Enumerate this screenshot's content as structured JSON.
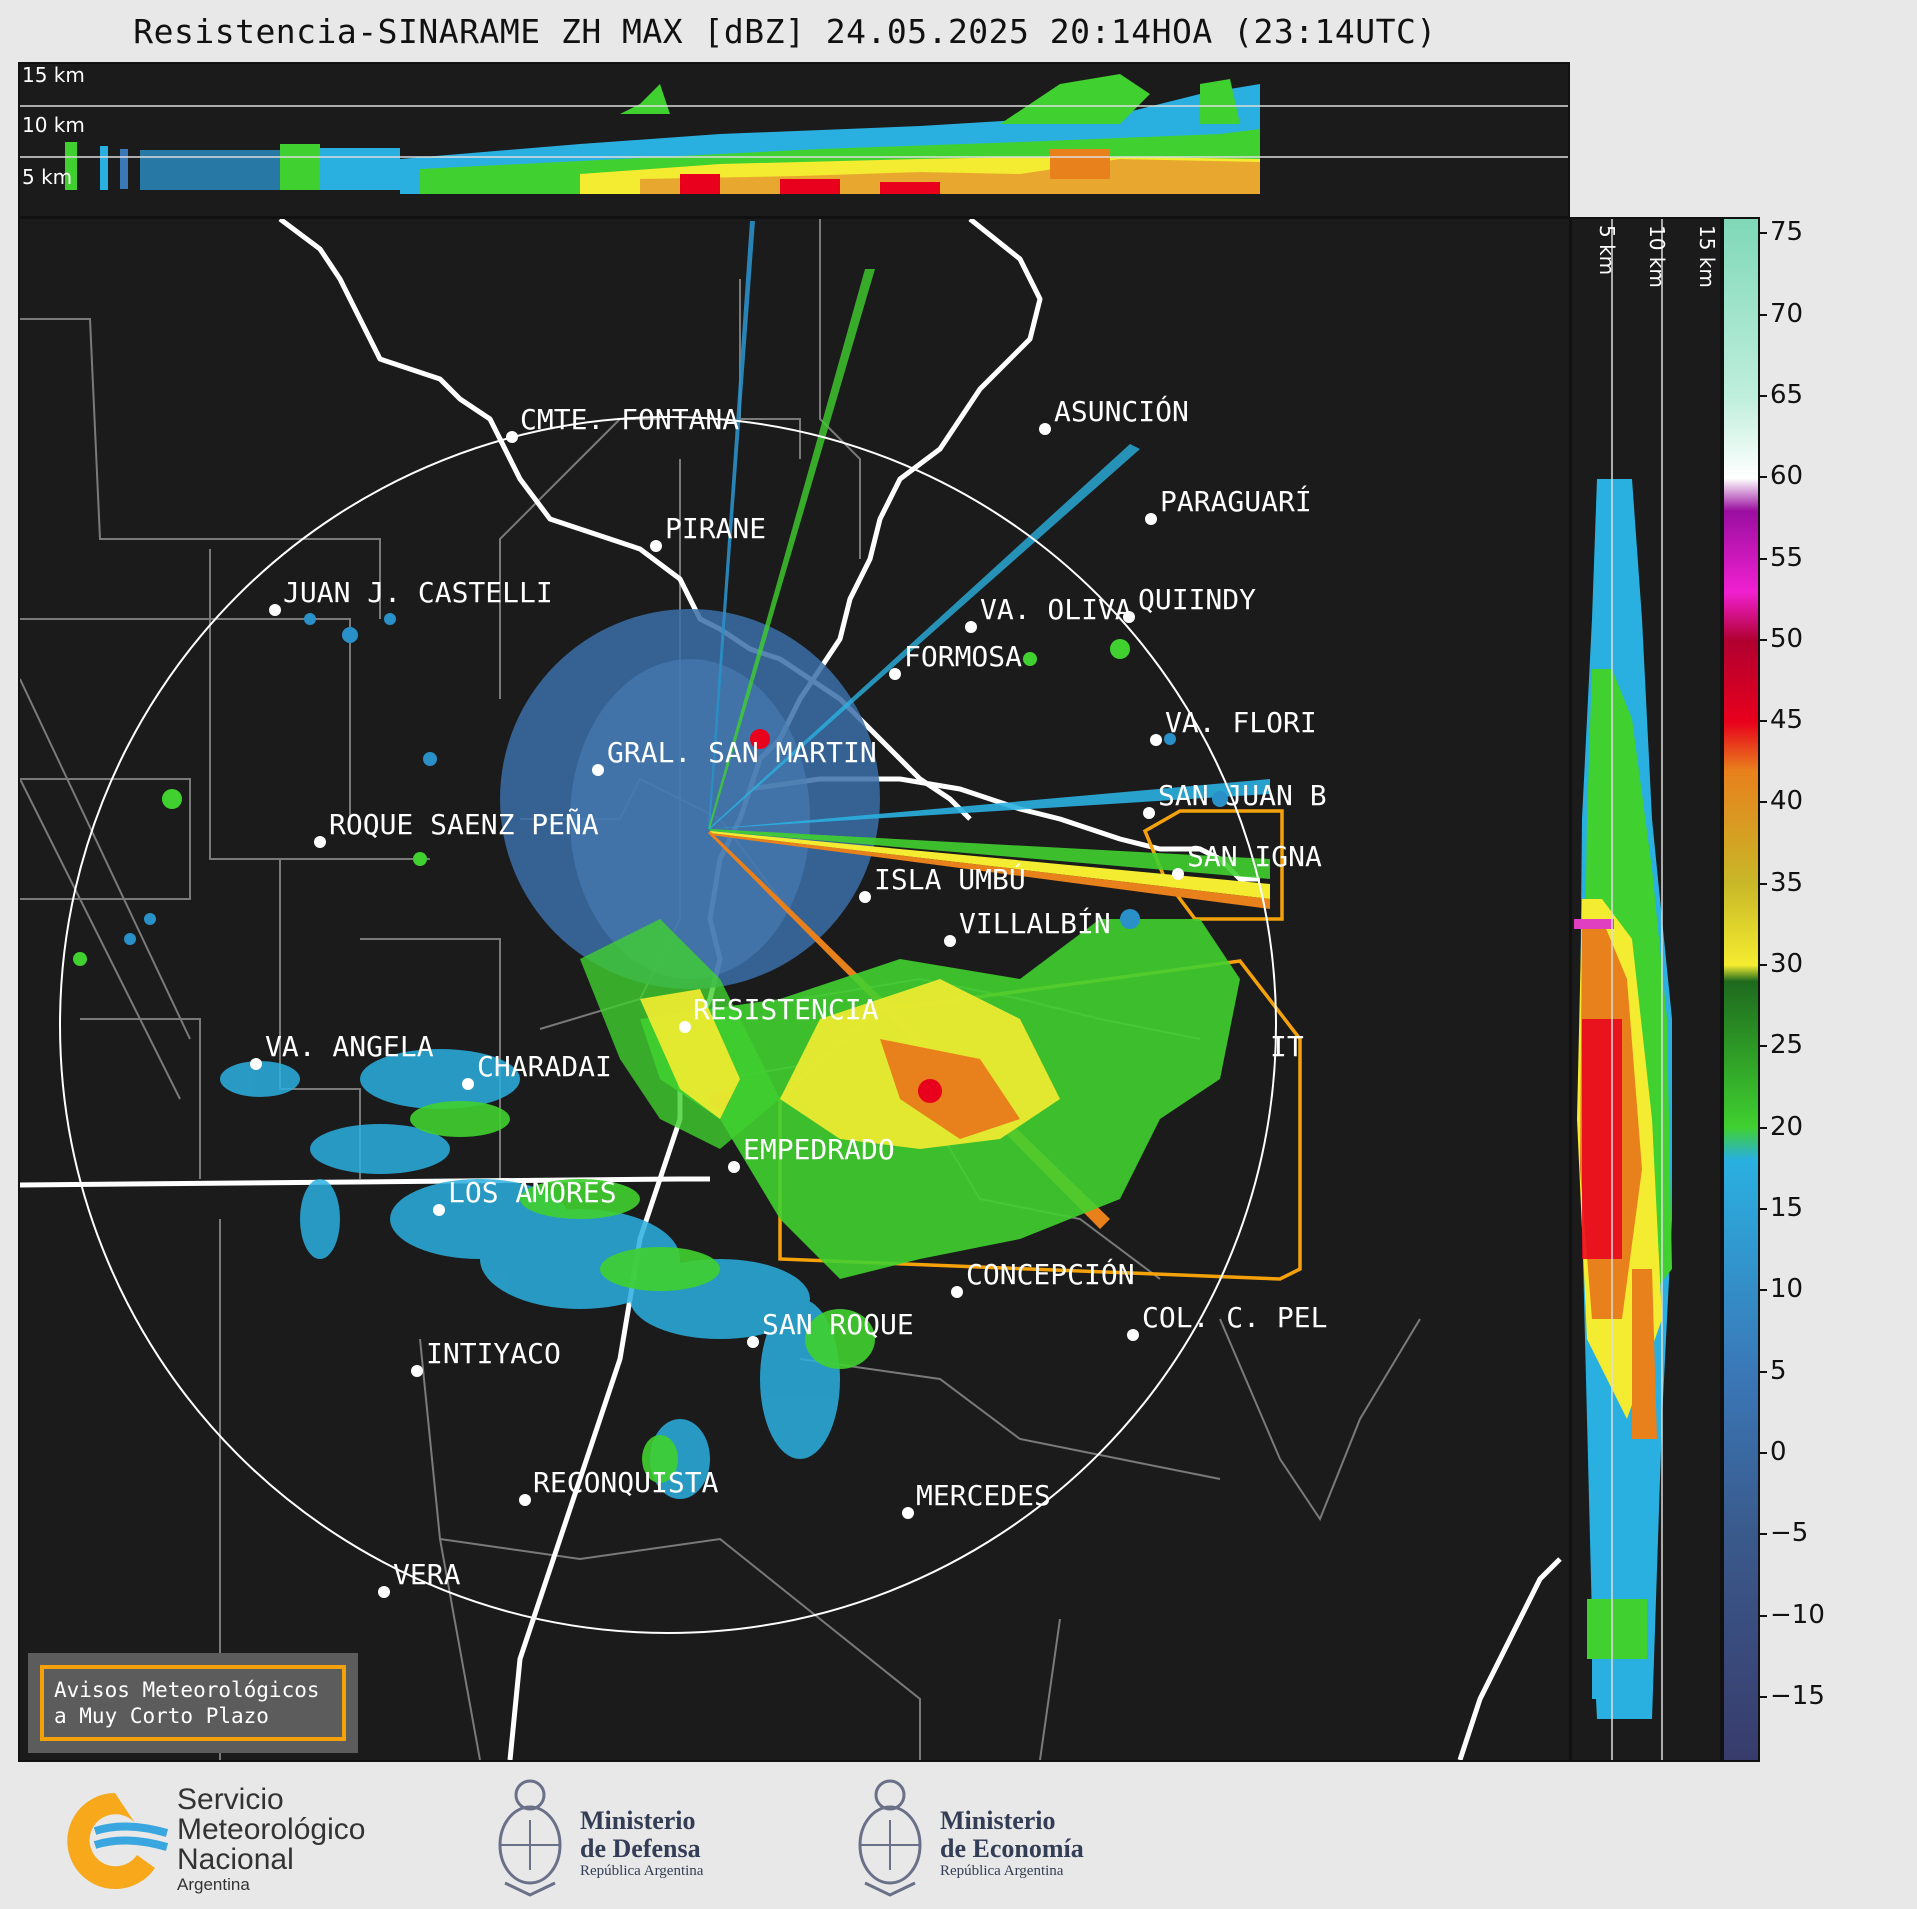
{
  "title": "Resistencia-SINARAME ZH MAX [dBZ] 24.05.2025 20:14HOA (23:14UTC)",
  "top_profile": {
    "labels": [
      "15 km",
      "10 km",
      "5 km"
    ]
  },
  "right_profile": {
    "labels": [
      "5 km",
      "10 km",
      "15 km"
    ]
  },
  "cities": [
    {
      "name": "CMTE. FONTANA"
    },
    {
      "name": "ASUNCIÓN"
    },
    {
      "name": "PARAGUARÍ"
    },
    {
      "name": "PIRANE"
    },
    {
      "name": "JUAN J. CASTELLI"
    },
    {
      "name": "VA. OLIVA"
    },
    {
      "name": "QUIINDY"
    },
    {
      "name": "FORMOSA"
    },
    {
      "name": "VA. FLORI"
    },
    {
      "name": "GRAL. SAN MARTIN"
    },
    {
      "name": "SAN JUAN B"
    },
    {
      "name": "ROQUE SAENZ PEÑA"
    },
    {
      "name": "SAN IGNA"
    },
    {
      "name": "ISLA UMBÚ"
    },
    {
      "name": "VILLALBÍN"
    },
    {
      "name": "RESISTENCIA"
    },
    {
      "name": "VA. ANGELA"
    },
    {
      "name": "CHARADAI"
    },
    {
      "name": "IT"
    },
    {
      "name": "EMPEDRADO"
    },
    {
      "name": "LOS AMORES"
    },
    {
      "name": "CONCEPCIÓN"
    },
    {
      "name": "SAN ROQUE"
    },
    {
      "name": "COL. C. PEL"
    },
    {
      "name": "INTIYACO"
    },
    {
      "name": "RECONQUISTA"
    },
    {
      "name": "MERCEDES"
    },
    {
      "name": "VERA"
    }
  ],
  "colorbar": {
    "ticks": [
      "75",
      "70",
      "65",
      "60",
      "55",
      "50",
      "45",
      "40",
      "35",
      "30",
      "25",
      "20",
      "15",
      "10",
      "5",
      "0",
      "−5",
      "−10",
      "−15"
    ],
    "stops": [
      {
        "value": 76,
        "color": "#7fd8b8"
      },
      {
        "value": 65,
        "color": "#bfefdc"
      },
      {
        "value": 60,
        "color": "#ffffff"
      },
      {
        "value": 58,
        "color": "#9a0ea0"
      },
      {
        "value": 53,
        "color": "#f020d0"
      },
      {
        "value": 50,
        "color": "#b00030"
      },
      {
        "value": 45,
        "color": "#e8001c"
      },
      {
        "value": 42,
        "color": "#e8801c"
      },
      {
        "value": 35,
        "color": "#c8b828"
      },
      {
        "value": 30,
        "color": "#f4ec30"
      },
      {
        "value": 29,
        "color": "#1e6a1e"
      },
      {
        "value": 20,
        "color": "#40d030"
      },
      {
        "value": 18,
        "color": "#2ab0e0"
      },
      {
        "value": 5,
        "color": "#3a78b8"
      },
      {
        "value": -5,
        "color": "#3a5a8c"
      },
      {
        "value": -19,
        "color": "#383c6c"
      }
    ]
  },
  "aviso": {
    "line1": "Avisos Meteorológicos",
    "line2": "a Muy Corto Plazo"
  },
  "logos": {
    "smn": {
      "line1": "Servicio",
      "line2": "Meteorológico",
      "line3": "Nacional",
      "line4": "Argentina"
    },
    "defensa": {
      "line1": "Ministerio",
      "line2": "de Defensa",
      "line3": "República Argentina"
    },
    "economia": {
      "line1": "Ministerio",
      "line2": "de Economía",
      "line3": "República Argentina"
    }
  }
}
